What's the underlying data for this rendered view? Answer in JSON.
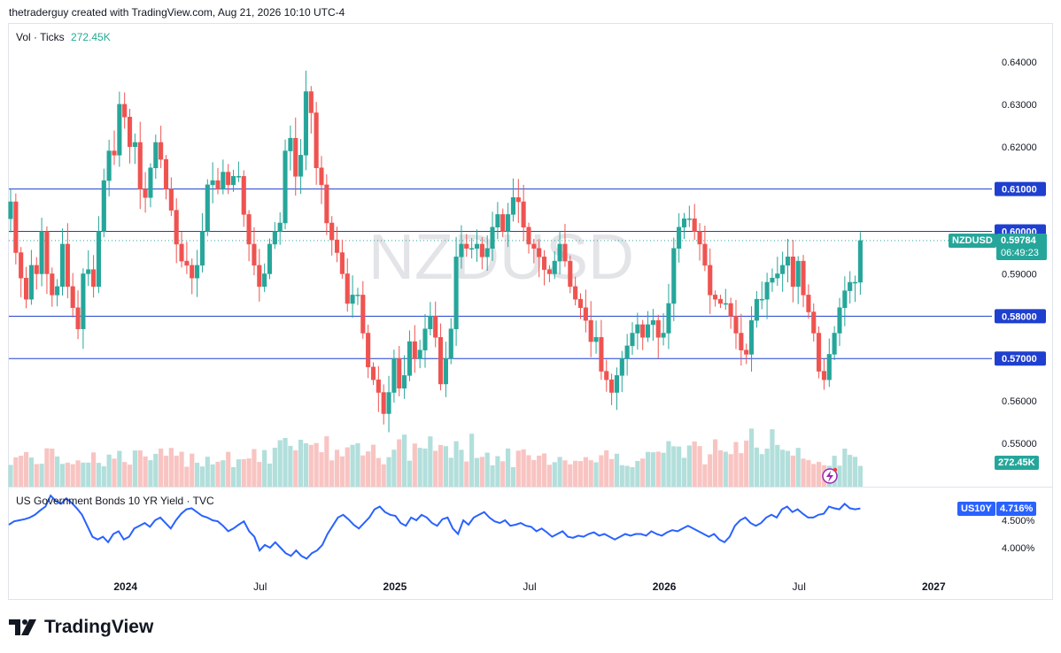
{
  "header": {
    "credit": "thetraderguy created with TradingView.com, Aug 21, 2026 10:10 UTC-4"
  },
  "volume_label": {
    "name": "Vol · Ticks",
    "value": "272.45K"
  },
  "watermark": "NZDUSD",
  "indicator_label": "US Government Bonds 10 YR Yield · TVC",
  "symbol_tag": {
    "symbol": "NZDUSD",
    "price": "0.59784",
    "countdown": "06:49:23"
  },
  "volume_tag": "272.45K",
  "yield_tag": {
    "symbol": "US10Y",
    "value": "4.716%"
  },
  "logo_text": "TradingView",
  "colors": {
    "up": "#26a69a",
    "down": "#ef5350",
    "line": "#2962ff",
    "level": "#1e3fcf"
  },
  "chart_data": {
    "type": "candlestick",
    "timeframe": "weekly",
    "price_axis": {
      "range": [
        0.545,
        0.645
      ],
      "ticks": [
        "0.64000",
        "0.63000",
        "0.62000",
        "0.61000",
        "0.60000",
        "0.59000",
        "0.58000",
        "0.57000",
        "0.56000",
        "0.55000"
      ],
      "tick_values": [
        0.64,
        0.63,
        0.62,
        0.61,
        0.6,
        0.59,
        0.58,
        0.57,
        0.56,
        0.55
      ]
    },
    "time_axis": {
      "labels": [
        "2024",
        "Jul",
        "2025",
        "Jul",
        "2026",
        "Jul",
        "2027"
      ],
      "label_weeks": [
        26,
        52,
        78,
        104,
        130,
        156,
        182
      ]
    },
    "horizontal_levels": [
      {
        "price": 0.61,
        "label": "0.61000"
      },
      {
        "price": 0.6,
        "label": "0.60000"
      },
      {
        "price": 0.58,
        "label": "0.58000"
      },
      {
        "price": 0.57,
        "label": "0.57000"
      }
    ],
    "last_price": 0.59784,
    "price_close_path": [
      0.607,
      0.595,
      0.589,
      0.584,
      0.592,
      0.59,
      0.6,
      0.59,
      0.585,
      0.587,
      0.597,
      0.587,
      0.582,
      0.577,
      0.59,
      0.591,
      0.587,
      0.6,
      0.612,
      0.619,
      0.618,
      0.63,
      0.627,
      0.62,
      0.621,
      0.61,
      0.608,
      0.615,
      0.621,
      0.617,
      0.61,
      0.605,
      0.597,
      0.593,
      0.592,
      0.589,
      0.592,
      0.6,
      0.611,
      0.612,
      0.61,
      0.614,
      0.611,
      0.613,
      0.613,
      0.604,
      0.597,
      0.592,
      0.587,
      0.59,
      0.597,
      0.6,
      0.602,
      0.619,
      0.622,
      0.613,
      0.618,
      0.633,
      0.628,
      0.615,
      0.611,
      0.602,
      0.598,
      0.595,
      0.59,
      0.583,
      0.585,
      0.585,
      0.576,
      0.568,
      0.565,
      0.562,
      0.557,
      0.562,
      0.57,
      0.563,
      0.566,
      0.574,
      0.57,
      0.572,
      0.577,
      0.58,
      0.575,
      0.564,
      0.57,
      0.577,
      0.594,
      0.597,
      0.596,
      0.596,
      0.597,
      0.594,
      0.596,
      0.601,
      0.604,
      0.6,
      0.604,
      0.608,
      0.607,
      0.601,
      0.597,
      0.596,
      0.594,
      0.591,
      0.59,
      0.593,
      0.597,
      0.593,
      0.587,
      0.584,
      0.582,
      0.579,
      0.574,
      0.575,
      0.567,
      0.565,
      0.562,
      0.566,
      0.57,
      0.573,
      0.576,
      0.578,
      0.575,
      0.578,
      0.579,
      0.575,
      0.576,
      0.583,
      0.596,
      0.601,
      0.603,
      0.603,
      0.6,
      0.597,
      0.592,
      0.585,
      0.584,
      0.583,
      0.583,
      0.58,
      0.576,
      0.572,
      0.571,
      0.579,
      0.584,
      0.584,
      0.588,
      0.589,
      0.59,
      0.592,
      0.594,
      0.587,
      0.593,
      0.585,
      0.581,
      0.576,
      0.567,
      0.565,
      0.571,
      0.576,
      0.582,
      0.586,
      0.588,
      0.588,
      0.59784
    ],
    "volume": {
      "last": "272.45K"
    },
    "yield_axis": {
      "ticks": [
        "4.500%",
        "4.000%"
      ],
      "tick_values": [
        4.5,
        4.0
      ],
      "last": 4.716
    },
    "yield_path": [
      4.42,
      4.48,
      4.5,
      4.52,
      4.55,
      4.6,
      4.68,
      4.75,
      4.95,
      4.85,
      4.8,
      4.9,
      4.82,
      4.72,
      4.6,
      4.4,
      4.2,
      4.15,
      4.2,
      4.1,
      4.25,
      4.3,
      4.15,
      4.2,
      4.35,
      4.4,
      4.45,
      4.38,
      4.5,
      4.55,
      4.45,
      4.35,
      4.5,
      4.62,
      4.7,
      4.72,
      4.65,
      4.58,
      4.55,
      4.5,
      4.48,
      4.4,
      4.3,
      4.35,
      4.42,
      4.48,
      4.3,
      4.2,
      3.95,
      4.05,
      4.0,
      4.1,
      4.0,
      3.9,
      3.85,
      3.95,
      3.85,
      3.8,
      3.9,
      3.95,
      4.05,
      4.25,
      4.4,
      4.55,
      4.6,
      4.52,
      4.42,
      4.35,
      4.45,
      4.55,
      4.7,
      4.75,
      4.65,
      4.6,
      4.58,
      4.45,
      4.4,
      4.55,
      4.5,
      4.6,
      4.55,
      4.45,
      4.4,
      4.52,
      4.55,
      4.35,
      4.25,
      4.5,
      4.42,
      4.55,
      4.6,
      4.65,
      4.55,
      4.48,
      4.45,
      4.5,
      4.4,
      4.42,
      4.45,
      4.4,
      4.38,
      4.3,
      4.35,
      4.28,
      4.2,
      4.25,
      4.3,
      4.2,
      4.18,
      4.22,
      4.2,
      4.25,
      4.28,
      4.22,
      4.25,
      4.2,
      4.15,
      4.2,
      4.25,
      4.22,
      4.25,
      4.25,
      4.22,
      4.3,
      4.25,
      4.22,
      4.28,
      4.32,
      4.3,
      4.35,
      4.4,
      4.35,
      4.3,
      4.25,
      4.2,
      4.25,
      4.15,
      4.1,
      4.2,
      4.4,
      4.5,
      4.55,
      4.45,
      4.4,
      4.45,
      4.55,
      4.6,
      4.55,
      4.7,
      4.75,
      4.65,
      4.7,
      4.62,
      4.55,
      4.55,
      4.6,
      4.62,
      4.75,
      4.72,
      4.7,
      4.8,
      4.72,
      4.7,
      4.716
    ]
  }
}
